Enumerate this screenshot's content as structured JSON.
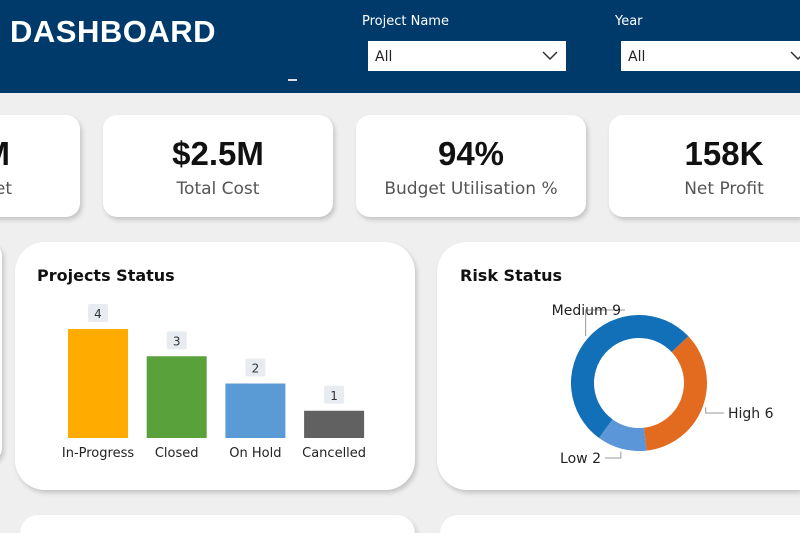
{
  "header": {
    "title": "DASHBOARD"
  },
  "filters": [
    {
      "label": "Project Name",
      "value": "All"
    },
    {
      "label": "Year",
      "value": "All"
    }
  ],
  "kpis": [
    {
      "value": "M",
      "label": "et"
    },
    {
      "value": "$2.5M",
      "label": "Total Cost"
    },
    {
      "value": "94%",
      "label": "Budget Utilisation %"
    },
    {
      "value": "158K",
      "label": "Net Profit"
    }
  ],
  "projects_status": {
    "type": "bar",
    "title": "Projects Status",
    "categories": [
      "In-Progress",
      "Closed",
      "On Hold",
      "Cancelled"
    ],
    "values": [
      4,
      3,
      2,
      1
    ],
    "colors": [
      "#ffab00",
      "#58a13b",
      "#5b9bd5",
      "#616161"
    ]
  },
  "risk_status": {
    "type": "donut",
    "title": "Risk Status",
    "categories": [
      "Medium",
      "High",
      "Low"
    ],
    "values": [
      9,
      6,
      2
    ],
    "colors": [
      "#1170b8",
      "#e36b1f",
      "#5b96d8"
    ]
  }
}
